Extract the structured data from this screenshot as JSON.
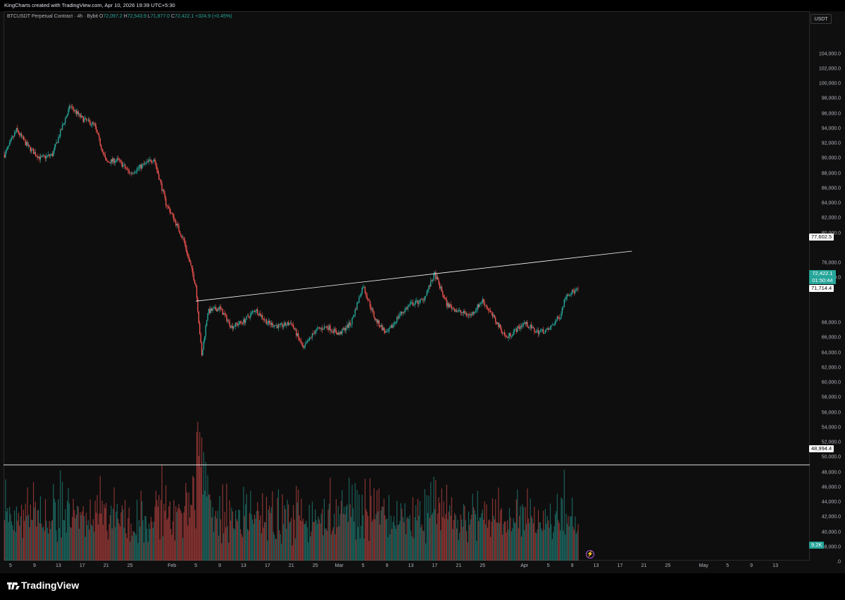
{
  "header": {
    "text": "KingCharts created with TradingView.com, Apr 10, 2026 19:39 UTC+5:30"
  },
  "legend": {
    "symbol": "BTCUSDT Perpetual Contract · 4h · Bybit",
    "o_label": "O",
    "o": "72,097.2",
    "h_label": "H",
    "h": "72,543.9",
    "l_label": "L",
    "l": "71,877.0",
    "c_label": "C",
    "c": "72,422.1",
    "change": "+324.9 (+0.45%)"
  },
  "axis": {
    "currency": "USDT"
  },
  "tags": {
    "trendline_end": "77,602.5",
    "last_price": "72,422.1",
    "countdown": "01:50:44",
    "prev_close": "71,714.4",
    "horizontal_line": "48,994.4",
    "volume": "9.2K"
  },
  "footer": {
    "brand": "TradingView"
  },
  "colors": {
    "up": "#26a69a",
    "down": "#ef5350",
    "bg": "#0e0e0e",
    "line": "#ffffff"
  },
  "icons": [
    "tradingview-logo-icon",
    "lightning-icon"
  ],
  "chart_data": {
    "type": "candlestick",
    "symbol": "BTCUSDT",
    "interval": "4h",
    "y_ticks": [
      104000,
      102000,
      100000,
      98000,
      96000,
      94000,
      92000,
      90000,
      88000,
      86000,
      84000,
      82000,
      80000,
      76000,
      74000,
      68000,
      66000,
      64000,
      62000,
      60000,
      58000,
      56000,
      54000,
      52000,
      50000,
      48000,
      46000,
      44000,
      42000,
      40000,
      38000
    ],
    "y_tick_labels": [
      "104,000.0",
      "102,000.0",
      "100,000.0",
      "98,000.0",
      "96,000.0",
      "94,000.0",
      "92,000.0",
      "90,000.0",
      "88,000.0",
      "86,000.0",
      "84,000.0",
      "82,000.0",
      "80,000.0",
      "76,000.0",
      "74,000.0",
      "68,000.0",
      "66,000.0",
      "64,000.0",
      "62,000.0",
      "60,000.0",
      "58,000.0",
      "56,000.0",
      "54,000.0",
      "52,000.0",
      "50,000.0",
      "48,000.0",
      "46,000.0",
      "44,000.0",
      "42,000.0",
      "40,000.0",
      "38,000.0"
    ],
    "partial_tick_label": ".0",
    "ylim": [
      36000,
      106000
    ],
    "x_tick_labels": [
      "5",
      "9",
      "13",
      "17",
      "21",
      "25",
      "Feb",
      "5",
      "9",
      "13",
      "17",
      "21",
      "25",
      "Mar",
      "5",
      "9",
      "13",
      "17",
      "21",
      "25",
      "Apr",
      "5",
      "9",
      "13",
      "17",
      "21",
      "25",
      "May",
      "5",
      "9",
      "13"
    ],
    "x_tick_dates": [
      "2026-01-05",
      "2026-01-09",
      "2026-01-13",
      "2026-01-17",
      "2026-01-21",
      "2026-01-25",
      "2026-02-01",
      "2026-02-05",
      "2026-02-09",
      "2026-02-13",
      "2026-02-17",
      "2026-02-21",
      "2026-02-25",
      "2026-03-01",
      "2026-03-05",
      "2026-03-09",
      "2026-03-13",
      "2026-03-17",
      "2026-03-21",
      "2026-03-25",
      "2026-04-01",
      "2026-04-05",
      "2026-04-09",
      "2026-04-13",
      "2026-04-17",
      "2026-04-21",
      "2026-04-25",
      "2026-05-01",
      "2026-05-05",
      "2026-05-09",
      "2026-05-13"
    ],
    "trendline": [
      {
        "date": "2026-02-05",
        "price": 70900
      },
      {
        "date": "2026-04-19",
        "price": 77600
      }
    ],
    "horizontal_line": 48994.4,
    "path": [
      {
        "date": "2026-01-04",
        "price": 90500
      },
      {
        "date": "2026-01-06",
        "price": 93800
      },
      {
        "date": "2026-01-08",
        "price": 91500
      },
      {
        "date": "2026-01-10",
        "price": 90000
      },
      {
        "date": "2026-01-12",
        "price": 90500
      },
      {
        "date": "2026-01-14",
        "price": 95000
      },
      {
        "date": "2026-01-15",
        "price": 97000
      },
      {
        "date": "2026-01-17",
        "price": 95300
      },
      {
        "date": "2026-01-19",
        "price": 94500
      },
      {
        "date": "2026-01-21",
        "price": 89500
      },
      {
        "date": "2026-01-23",
        "price": 89800
      },
      {
        "date": "2026-01-25",
        "price": 88000
      },
      {
        "date": "2026-01-27",
        "price": 89000
      },
      {
        "date": "2026-01-29",
        "price": 90000
      },
      {
        "date": "2026-01-31",
        "price": 84000
      },
      {
        "date": "2026-02-01",
        "price": 82500
      },
      {
        "date": "2026-02-03",
        "price": 79000
      },
      {
        "date": "2026-02-05",
        "price": 73000
      },
      {
        "date": "2026-02-06",
        "price": 63500
      },
      {
        "date": "2026-02-07",
        "price": 69500
      },
      {
        "date": "2026-02-09",
        "price": 70000
      },
      {
        "date": "2026-02-11",
        "price": 67500
      },
      {
        "date": "2026-02-13",
        "price": 68200
      },
      {
        "date": "2026-02-15",
        "price": 69800
      },
      {
        "date": "2026-02-17",
        "price": 68000
      },
      {
        "date": "2026-02-19",
        "price": 67500
      },
      {
        "date": "2026-02-21",
        "price": 68000
      },
      {
        "date": "2026-02-23",
        "price": 64500
      },
      {
        "date": "2026-02-25",
        "price": 67000
      },
      {
        "date": "2026-02-27",
        "price": 67500
      },
      {
        "date": "2026-03-01",
        "price": 66500
      },
      {
        "date": "2026-03-03",
        "price": 68000
      },
      {
        "date": "2026-03-05",
        "price": 73000
      },
      {
        "date": "2026-03-07",
        "price": 68500
      },
      {
        "date": "2026-03-09",
        "price": 66500
      },
      {
        "date": "2026-03-11",
        "price": 69000
      },
      {
        "date": "2026-03-13",
        "price": 70500
      },
      {
        "date": "2026-03-15",
        "price": 71000
      },
      {
        "date": "2026-03-17",
        "price": 74500
      },
      {
        "date": "2026-03-19",
        "price": 70500
      },
      {
        "date": "2026-03-21",
        "price": 69500
      },
      {
        "date": "2026-03-23",
        "price": 69000
      },
      {
        "date": "2026-03-25",
        "price": 71000
      },
      {
        "date": "2026-03-27",
        "price": 68500
      },
      {
        "date": "2026-03-29",
        "price": 66000
      },
      {
        "date": "2026-04-01",
        "price": 68000
      },
      {
        "date": "2026-04-03",
        "price": 66800
      },
      {
        "date": "2026-04-05",
        "price": 67000
      },
      {
        "date": "2026-04-07",
        "price": 69000
      },
      {
        "date": "2026-04-08",
        "price": 71800
      },
      {
        "date": "2026-04-10",
        "price": 72422
      }
    ]
  }
}
